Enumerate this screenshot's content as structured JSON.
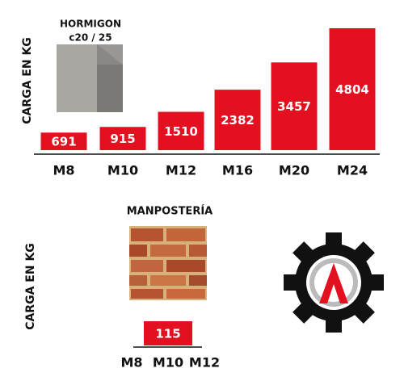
{
  "chart_data": [
    {
      "type": "bar",
      "title": [
        "HORMIGON",
        "c20 / 25"
      ],
      "y_label": "CARGA EN KG",
      "categories": [
        "M8",
        "M10",
        "M12",
        "M16",
        "M20",
        "M24"
      ],
      "values": [
        691,
        915,
        1510,
        2382,
        3457,
        4804
      ],
      "color": "#e3101f"
    },
    {
      "type": "bar",
      "title": "MANPOSTERÍA",
      "y_label": "CARGA EN KG",
      "categories": [
        "M8",
        "M10",
        "M12"
      ],
      "values": [
        null,
        115,
        null
      ],
      "color": "#e3101f"
    }
  ]
}
